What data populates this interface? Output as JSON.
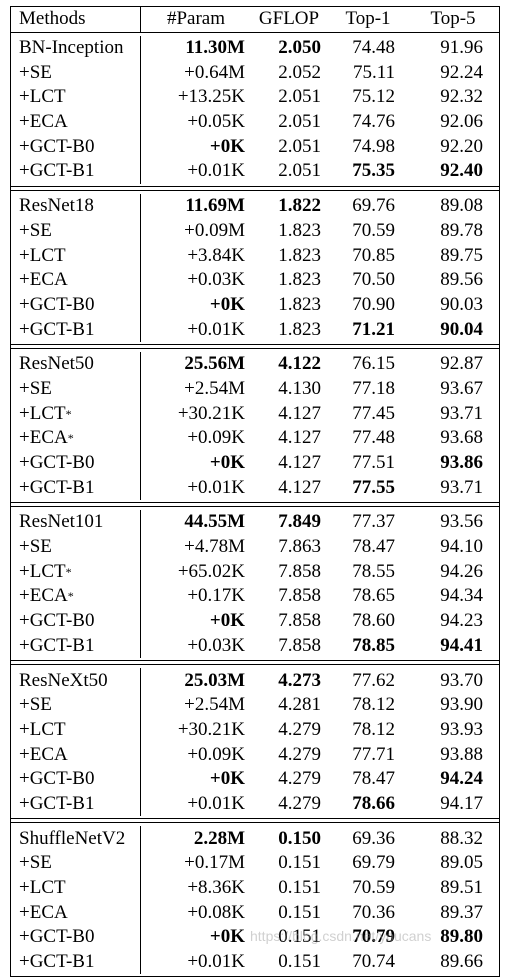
{
  "columns": [
    "Methods",
    "#Param",
    "GFLOP",
    "Top-1",
    "Top-5"
  ],
  "groups": [
    {
      "rows": [
        {
          "m": "BN-Inception",
          "p": "11.30M",
          "g": "2.050",
          "t1": "74.48",
          "t5": "91.96",
          "bp": true,
          "bg": true
        },
        {
          "m": "+SE",
          "p": "+0.64M",
          "g": "2.052",
          "t1": "75.11",
          "t5": "92.24"
        },
        {
          "m": "+LCT",
          "p": "+13.25K",
          "g": "2.051",
          "t1": "75.12",
          "t5": "92.32"
        },
        {
          "m": "+ECA",
          "p": "+0.05K",
          "g": "2.051",
          "t1": "74.76",
          "t5": "92.06"
        },
        {
          "m": "+GCT-B0",
          "p": "+0K",
          "g": "2.051",
          "t1": "74.98",
          "t5": "92.20",
          "bp": true
        },
        {
          "m": "+GCT-B1",
          "p": "+0.01K",
          "g": "2.051",
          "t1": "75.35",
          "t5": "92.40",
          "b1": true,
          "b5": true
        }
      ]
    },
    {
      "rows": [
        {
          "m": "ResNet18",
          "p": "11.69M",
          "g": "1.822",
          "t1": "69.76",
          "t5": "89.08",
          "bp": true,
          "bg": true
        },
        {
          "m": "+SE",
          "p": "+0.09M",
          "g": "1.823",
          "t1": "70.59",
          "t5": "89.78"
        },
        {
          "m": "+LCT",
          "p": "+3.84K",
          "g": "1.823",
          "t1": "70.85",
          "t5": "89.75"
        },
        {
          "m": "+ECA",
          "p": "+0.03K",
          "g": "1.823",
          "t1": "70.50",
          "t5": "89.56"
        },
        {
          "m": "+GCT-B0",
          "p": "+0K",
          "g": "1.823",
          "t1": "70.90",
          "t5": "90.03",
          "bp": true
        },
        {
          "m": "+GCT-B1",
          "p": "+0.01K",
          "g": "1.823",
          "t1": "71.21",
          "t5": "90.04",
          "b1": true,
          "b5": true
        }
      ]
    },
    {
      "rows": [
        {
          "m": "ResNet50",
          "p": "25.56M",
          "g": "4.122",
          "t1": "76.15",
          "t5": "92.87",
          "bp": true,
          "bg": true
        },
        {
          "m": "+SE",
          "p": "+2.54M",
          "g": "4.130",
          "t1": "77.18",
          "t5": "93.67"
        },
        {
          "m": "+LCT",
          "star": "*",
          "p": "+30.21K",
          "g": "4.127",
          "t1": "77.45",
          "t5": "93.71"
        },
        {
          "m": "+ECA",
          "star": "*",
          "p": "+0.09K",
          "g": "4.127",
          "t1": "77.48",
          "t5": "93.68"
        },
        {
          "m": "+GCT-B0",
          "p": "+0K",
          "g": "4.127",
          "t1": "77.51",
          "t5": "93.86",
          "bp": true,
          "b5": true
        },
        {
          "m": "+GCT-B1",
          "p": "+0.01K",
          "g": "4.127",
          "t1": "77.55",
          "t5": "93.71",
          "b1": true
        }
      ]
    },
    {
      "rows": [
        {
          "m": "ResNet101",
          "p": "44.55M",
          "g": "7.849",
          "t1": "77.37",
          "t5": "93.56",
          "bp": true,
          "bg": true
        },
        {
          "m": "+SE",
          "p": "+4.78M",
          "g": "7.863",
          "t1": "78.47",
          "t5": "94.10"
        },
        {
          "m": "+LCT",
          "star": "*",
          "p": "+65.02K",
          "g": "7.858",
          "t1": "78.55",
          "t5": "94.26"
        },
        {
          "m": "+ECA",
          "star": "*",
          "p": "+0.17K",
          "g": "7.858",
          "t1": "78.65",
          "t5": "94.34"
        },
        {
          "m": "+GCT-B0",
          "p": "+0K",
          "g": "7.858",
          "t1": "78.60",
          "t5": "94.23",
          "bp": true
        },
        {
          "m": "+GCT-B1",
          "p": "+0.03K",
          "g": "7.858",
          "t1": "78.85",
          "t5": "94.41",
          "b1": true,
          "b5": true
        }
      ]
    },
    {
      "rows": [
        {
          "m": "ResNeXt50",
          "p": "25.03M",
          "g": "4.273",
          "t1": "77.62",
          "t5": "93.70",
          "bp": true,
          "bg": true
        },
        {
          "m": "+SE",
          "p": "+2.54M",
          "g": "4.281",
          "t1": "78.12",
          "t5": "93.90"
        },
        {
          "m": "+LCT",
          "p": "+30.21K",
          "g": "4.279",
          "t1": "78.12",
          "t5": "93.93"
        },
        {
          "m": "+ECA",
          "p": "+0.09K",
          "g": "4.279",
          "t1": "77.71",
          "t5": "93.88"
        },
        {
          "m": "+GCT-B0",
          "p": "+0K",
          "g": "4.279",
          "t1": "78.47",
          "t5": "94.24",
          "bp": true,
          "b5": true
        },
        {
          "m": "+GCT-B1",
          "p": "+0.01K",
          "g": "4.279",
          "t1": "78.66",
          "t5": "94.17",
          "b1": true
        }
      ]
    },
    {
      "rows": [
        {
          "m": "ShuffleNetV2",
          "p": "2.28M",
          "g": "0.150",
          "t1": "69.36",
          "t5": "88.32",
          "bp": true,
          "bg": true
        },
        {
          "m": "+SE",
          "p": "+0.17M",
          "g": "0.151",
          "t1": "69.79",
          "t5": "89.05"
        },
        {
          "m": "+LCT",
          "p": "+8.36K",
          "g": "0.151",
          "t1": "70.59",
          "t5": "89.51"
        },
        {
          "m": "+ECA",
          "p": "+0.08K",
          "g": "0.151",
          "t1": "70.36",
          "t5": "89.37"
        },
        {
          "m": "+GCT-B0",
          "p": "+0K",
          "g": "0.151",
          "t1": "70.79",
          "t5": "89.80",
          "bp": true,
          "b1": true,
          "b5": true
        },
        {
          "m": "+GCT-B1",
          "p": "+0.01K",
          "g": "0.151",
          "t1": "70.74",
          "t5": "89.66"
        }
      ]
    }
  ],
  "watermark": "https://blog.csdn.net/youcans"
}
